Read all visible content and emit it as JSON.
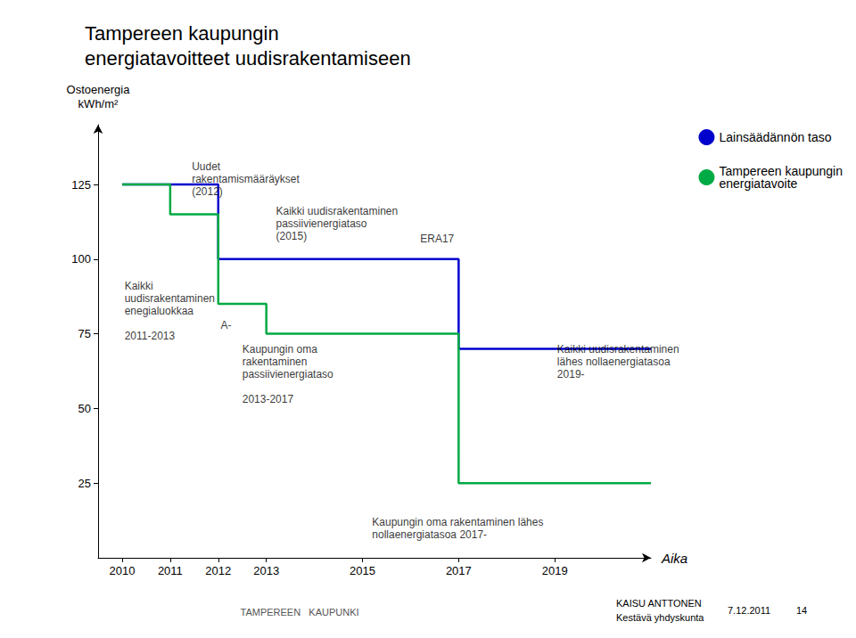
{
  "chart_data": {
    "type": "line",
    "title": "Tampereen kaupungin\nenergiatavoitteet uudisrakentamiseen",
    "y_label": "Ostoenergia\nkWh/m²",
    "x_label": "Aika",
    "series": [
      {
        "name": "Lainsäädännön taso",
        "color": "#0000cc",
        "x": [
          2010,
          2012,
          2012,
          2015,
          2015,
          2017,
          2017,
          2019,
          2019,
          2021
        ],
        "values": [
          125,
          125,
          100,
          100,
          100,
          100,
          70,
          70,
          70,
          70
        ]
      },
      {
        "name": "Tampereen kaupungin\nenergiatavoite",
        "color": "#00aa44",
        "x": [
          2010,
          2011,
          2011,
          2012,
          2012,
          2013,
          2013,
          2015,
          2015,
          2017,
          2017,
          2019,
          2019,
          2021
        ],
        "values": [
          125,
          125,
          115,
          115,
          85,
          85,
          75,
          75,
          75,
          75,
          25,
          25,
          25,
          25
        ]
      }
    ],
    "xlim": [
      2009.5,
      2021
    ],
    "ylim": [
      0,
      145
    ],
    "xticks": [
      2010,
      2011,
      2012,
      2013,
      2015,
      2017,
      2019
    ],
    "yticks": [
      25,
      50,
      75,
      100,
      125
    ],
    "grid": false,
    "legend": "upper right",
    "annotations": [
      {
        "text": "Uudet\nrakentamismääräykset\n(2012)",
        "x": 2011.45,
        "y": 133
      },
      {
        "text": "Kaikki uudisrakentaminen\npassiivienergiataso\n(2015)",
        "x": 2013.2,
        "y": 118
      },
      {
        "text": "ERA17",
        "x": 2016.2,
        "y": 109
      },
      {
        "text": "Kaikki\nuudisrakentaminen\nenegialuokkaa\n\n2011-2013",
        "x": 2010.05,
        "y": 93
      },
      {
        "text": "A-",
        "x": 2012.05,
        "y": 80
      },
      {
        "text": "Kaupungin oma\nrakentaminen\npassiivienergiataso\n\n2013-2017",
        "x": 2012.5,
        "y": 72
      },
      {
        "text": "Kaupungin oma rakentaminen lähes\nnollaenergiatasoa 2017-",
        "x": 2015.2,
        "y": 14
      },
      {
        "text": "Kaikki uudisrakentaminen\nlähes nollaenergiatasoa\n2019-",
        "x": 2019.05,
        "y": 72
      }
    ],
    "footer": [
      "TAMPEREEN   KAUPUNKI",
      "KAISU ANTTONEN",
      "Kestävä yhdyskunta",
      "7.12.2011",
      "14"
    ]
  }
}
